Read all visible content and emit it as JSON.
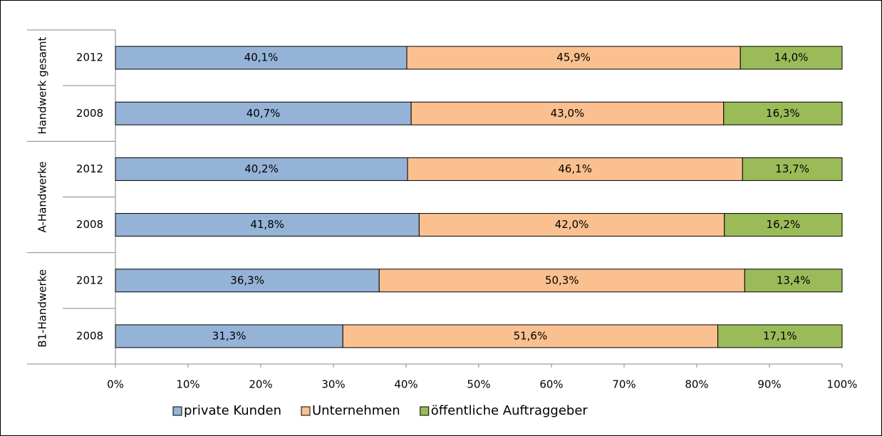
{
  "chart_data": {
    "type": "stacked-bar-horizontal",
    "groups": [
      {
        "name": "Handwerk gesamt",
        "categories": [
          "2012",
          "2008"
        ]
      },
      {
        "name": "A-Handwerke",
        "categories": [
          "2012",
          "2008"
        ]
      },
      {
        "name": "B1-Handwerke",
        "categories": [
          "2012",
          "2008"
        ]
      }
    ],
    "series": [
      {
        "name": "private Kunden",
        "color": "#95b3d7",
        "values": [
          40.1,
          40.7,
          40.2,
          41.8,
          36.3,
          31.3
        ],
        "value_labels": [
          "40,1%",
          "40,7%",
          "40,2%",
          "41,8%",
          "36,3%",
          "31,3%"
        ]
      },
      {
        "name": "Unternehmen",
        "color": "#fac090",
        "values": [
          45.9,
          43.0,
          46.1,
          42.0,
          50.3,
          51.6
        ],
        "value_labels": [
          "45,9%",
          "43,0%",
          "46,1%",
          "42,0%",
          "50,3%",
          "51,6%"
        ]
      },
      {
        "name": "öffentliche Auftraggeber",
        "color": "#9bbb59",
        "values": [
          14.0,
          16.3,
          13.7,
          16.2,
          13.4,
          17.1
        ],
        "value_labels": [
          "14,0%",
          "16,3%",
          "13,7%",
          "16,2%",
          "13,4%",
          "17,1%"
        ]
      }
    ],
    "xlim": [
      0,
      100
    ],
    "xticks": [
      {
        "value": 0,
        "label": "0%"
      },
      {
        "value": 10,
        "label": "10%"
      },
      {
        "value": 20,
        "label": "20%"
      },
      {
        "value": 30,
        "label": "30%"
      },
      {
        "value": 40,
        "label": "40%"
      },
      {
        "value": 50,
        "label": "50%"
      },
      {
        "value": 60,
        "label": "60%"
      },
      {
        "value": 70,
        "label": "70%"
      },
      {
        "value": 80,
        "label": "80%"
      },
      {
        "value": 90,
        "label": "90%"
      },
      {
        "value": 100,
        "label": "100%"
      }
    ],
    "legend": "bottom"
  }
}
